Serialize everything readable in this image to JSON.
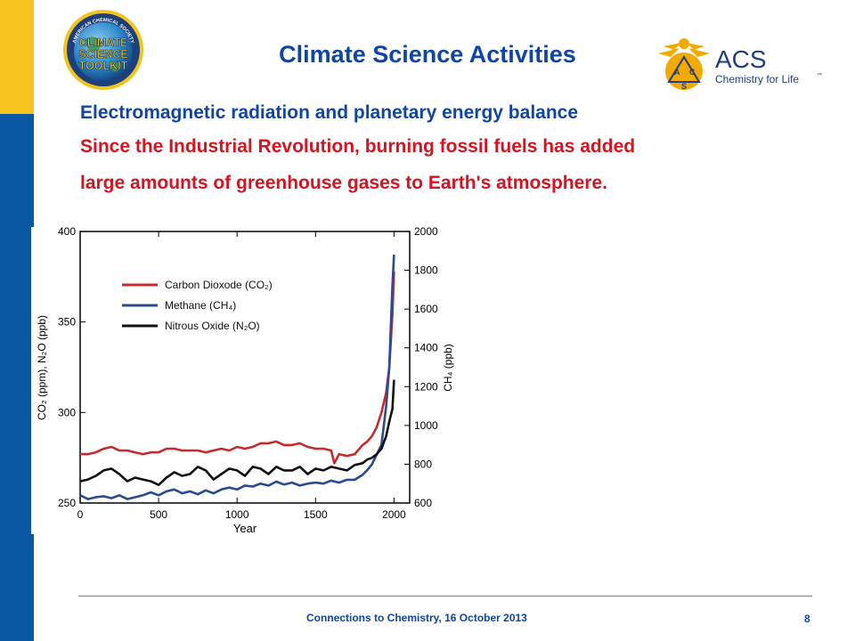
{
  "slide": {
    "title": "Climate Science Activities",
    "subtitle": "Electromagnetic radiation and planetary energy balance",
    "body_line_1": "Since the Industrial Revolution, burning fossil fuels has added",
    "body_line_2": "large amounts of greenhouse gases to Earth's atmosphere.",
    "footer": "Connections to Chemistry, 16 October 2013",
    "page_number": "8"
  },
  "logos": {
    "toolkit": {
      "top_text": "AMERICAN CHEMICAL SOCIETY",
      "lines": [
        "CLIMATE",
        "SCIENCE",
        "TOOLKIT"
      ]
    },
    "acs": {
      "name": "ACS",
      "tagline": "Chemistry for Life",
      "tm": "™",
      "triangle_letters": [
        "A",
        "C",
        "S"
      ]
    }
  },
  "colors": {
    "accent_blue": "#0f46a5",
    "side_bar_blue": "#0a58a4",
    "side_bar_yellow": "#f7c31d",
    "highlight_red": "#d8121f"
  },
  "chart_data": {
    "type": "line",
    "title": "",
    "xlabel": "Year",
    "ylabel_left": "CO₂ (ppm), N₂O (ppb)",
    "ylabel_right": "CH₄ (ppb)",
    "x_ticks": [
      0,
      500,
      1000,
      1500,
      2000
    ],
    "y_left_ticks": [
      250,
      300,
      350,
      400
    ],
    "y_right_ticks": [
      600,
      800,
      1000,
      1200,
      1400,
      1600,
      1800,
      2000
    ],
    "xlim": [
      0,
      2100
    ],
    "ylim_left": [
      250,
      400
    ],
    "ylim_right": [
      600,
      2000
    ],
    "grid": false,
    "legend_placement": "top-left",
    "series": [
      {
        "name": "Carbon Dioxode (CO₂)",
        "axis": "left",
        "color": "#c62a2a",
        "x": [
          0,
          50,
          100,
          150,
          200,
          250,
          300,
          350,
          400,
          450,
          500,
          550,
          600,
          650,
          700,
          750,
          800,
          850,
          900,
          950,
          1000,
          1050,
          1100,
          1150,
          1200,
          1250,
          1300,
          1350,
          1400,
          1450,
          1500,
          1550,
          1600,
          1620,
          1650,
          1700,
          1750,
          1800,
          1830,
          1860,
          1890,
          1920,
          1950,
          1970,
          1990,
          2000
        ],
        "values": [
          277,
          277,
          278,
          280,
          281,
          279,
          279,
          278,
          277,
          278,
          278,
          280,
          280,
          279,
          279,
          279,
          278,
          279,
          280,
          279,
          281,
          280,
          281,
          283,
          283,
          284,
          282,
          282,
          283,
          281,
          280,
          280,
          279,
          272,
          277,
          276,
          277,
          282,
          284,
          287,
          292,
          300,
          311,
          325,
          354,
          378
        ]
      },
      {
        "name": "Methane (CH₄)",
        "axis": "right",
        "color": "#2b4a8f",
        "x": [
          0,
          50,
          100,
          150,
          200,
          250,
          300,
          350,
          400,
          450,
          500,
          550,
          600,
          650,
          700,
          750,
          800,
          850,
          900,
          950,
          1000,
          1050,
          1100,
          1150,
          1200,
          1250,
          1300,
          1350,
          1400,
          1450,
          1500,
          1550,
          1600,
          1650,
          1700,
          1750,
          1800,
          1830,
          1860,
          1890,
          1920,
          1950,
          1970,
          1980,
          1990,
          2000
        ],
        "values": [
          640,
          620,
          630,
          635,
          625,
          640,
          620,
          630,
          640,
          655,
          640,
          660,
          670,
          650,
          660,
          645,
          665,
          650,
          670,
          680,
          670,
          690,
          685,
          700,
          690,
          710,
          695,
          705,
          690,
          700,
          705,
          700,
          715,
          705,
          720,
          720,
          745,
          770,
          800,
          850,
          900,
          1100,
          1300,
          1520,
          1720,
          1880
        ]
      },
      {
        "name": "Nitrous Oxide (N₂O)",
        "axis": "left",
        "color": "#111111",
        "x": [
          0,
          50,
          100,
          150,
          200,
          250,
          300,
          350,
          400,
          450,
          500,
          550,
          600,
          650,
          700,
          750,
          800,
          850,
          900,
          950,
          1000,
          1050,
          1100,
          1150,
          1200,
          1250,
          1300,
          1350,
          1400,
          1450,
          1500,
          1550,
          1600,
          1650,
          1700,
          1750,
          1800,
          1830,
          1860,
          1890,
          1920,
          1950,
          1970,
          1990,
          2000
        ],
        "values": [
          262,
          263,
          265,
          268,
          269,
          266,
          262,
          264,
          263,
          262,
          260,
          264,
          267,
          265,
          266,
          270,
          268,
          263,
          266,
          269,
          268,
          265,
          270,
          269,
          266,
          270,
          268,
          268,
          270,
          266,
          269,
          268,
          270,
          269,
          268,
          271,
          272,
          274,
          275,
          277,
          280,
          287,
          295,
          302,
          318
        ]
      }
    ]
  }
}
